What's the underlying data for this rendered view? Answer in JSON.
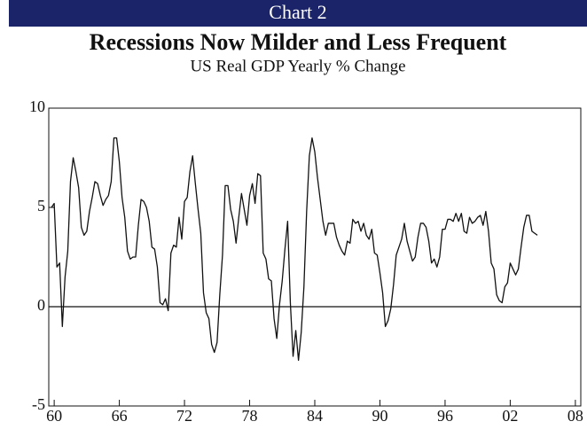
{
  "chart_data": {
    "type": "line",
    "header": "Chart 2",
    "title": "Recessions Now Milder and Less Frequent",
    "subtitle": "US Real GDP Yearly % Change",
    "color": "#111111",
    "x": [
      1959.75,
      1960,
      1960.25,
      1960.5,
      1960.75,
      1961,
      1961.25,
      1961.5,
      1961.75,
      1962,
      1962.25,
      1962.5,
      1962.75,
      1963,
      1963.25,
      1963.5,
      1963.75,
      1964,
      1964.25,
      1964.5,
      1964.75,
      1965,
      1965.25,
      1965.5,
      1965.75,
      1966,
      1966.25,
      1966.5,
      1966.75,
      1967,
      1967.25,
      1967.5,
      1967.75,
      1968,
      1968.25,
      1968.5,
      1968.75,
      1969,
      1969.25,
      1969.5,
      1969.75,
      1970,
      1970.25,
      1970.5,
      1970.75,
      1971,
      1971.25,
      1971.5,
      1971.75,
      1972,
      1972.25,
      1972.5,
      1972.75,
      1973,
      1973.25,
      1973.5,
      1973.75,
      1974,
      1974.25,
      1974.5,
      1974.75,
      1975,
      1975.25,
      1975.5,
      1975.75,
      1976,
      1976.25,
      1976.5,
      1976.75,
      1977,
      1977.25,
      1977.5,
      1977.75,
      1978,
      1978.25,
      1978.5,
      1978.75,
      1979,
      1979.25,
      1979.5,
      1979.75,
      1980,
      1980.25,
      1980.5,
      1980.75,
      1981,
      1981.25,
      1981.5,
      1981.75,
      1982,
      1982.25,
      1982.5,
      1982.75,
      1983,
      1983.25,
      1983.5,
      1983.75,
      1984,
      1984.25,
      1984.5,
      1984.75,
      1985,
      1985.25,
      1985.5,
      1985.75,
      1986,
      1986.25,
      1986.5,
      1986.75,
      1987,
      1987.25,
      1987.5,
      1987.75,
      1988,
      1988.25,
      1988.5,
      1988.75,
      1989,
      1989.25,
      1989.5,
      1989.75,
      1990,
      1990.25,
      1990.5,
      1990.75,
      1991,
      1991.25,
      1991.5,
      1991.75,
      1992,
      1992.25,
      1992.5,
      1992.75,
      1993,
      1993.25,
      1993.5,
      1993.75,
      1994,
      1994.25,
      1994.5,
      1994.75,
      1995,
      1995.25,
      1995.5,
      1995.75,
      1996,
      1996.25,
      1996.5,
      1996.75,
      1997,
      1997.25,
      1997.5,
      1997.75,
      1998,
      1998.25,
      1998.5,
      1998.75,
      1999,
      1999.25,
      1999.5,
      1999.75,
      2000,
      2000.25,
      2000.5,
      2000.75,
      2001,
      2001.25,
      2001.5,
      2001.75,
      2002,
      2002.25,
      2002.5,
      2002.75,
      2003,
      2003.25,
      2003.5,
      2003.75,
      2004,
      2004.25,
      2004.5
    ],
    "values": [
      5.0,
      5.2,
      2.0,
      2.2,
      -1.0,
      1.5,
      2.8,
      6.3,
      7.5,
      6.8,
      6.0,
      4.0,
      3.6,
      3.8,
      4.8,
      5.5,
      6.3,
      6.2,
      5.6,
      5.1,
      5.4,
      5.6,
      6.3,
      8.5,
      8.5,
      7.3,
      5.5,
      4.5,
      2.8,
      2.4,
      2.5,
      2.5,
      4.1,
      5.4,
      5.3,
      5.0,
      4.3,
      3.0,
      2.9,
      2.0,
      0.2,
      0.1,
      0.4,
      -0.2,
      2.7,
      3.1,
      3.0,
      4.5,
      3.4,
      5.3,
      5.5,
      6.8,
      7.6,
      6.2,
      4.9,
      3.7,
      0.7,
      -0.3,
      -0.6,
      -1.9,
      -2.3,
      -1.8,
      0.6,
      2.6,
      6.1,
      6.1,
      4.9,
      4.3,
      3.2,
      4.5,
      5.7,
      4.9,
      4.1,
      5.6,
      6.2,
      5.2,
      6.7,
      6.6,
      2.7,
      2.4,
      1.4,
      1.3,
      -0.6,
      -1.6,
      0.1,
      1.3,
      2.9,
      4.3,
      0.2,
      -2.5,
      -1.2,
      -2.7,
      -1.3,
      1.0,
      4.8,
      7.6,
      8.5,
      7.8,
      6.5,
      5.4,
      4.3,
      3.6,
      4.2,
      4.2,
      4.2,
      3.5,
      3.1,
      2.8,
      2.6,
      3.3,
      3.2,
      4.4,
      4.2,
      4.3,
      3.8,
      4.2,
      3.6,
      3.4,
      3.9,
      2.7,
      2.6,
      1.7,
      0.7,
      -1.0,
      -0.7,
      -0.1,
      1.1,
      2.6,
      3.0,
      3.4,
      4.2,
      3.3,
      2.8,
      2.3,
      2.5,
      3.5,
      4.2,
      4.2,
      4.0,
      3.3,
      2.2,
      2.4,
      2.0,
      2.5,
      3.9,
      3.9,
      4.4,
      4.4,
      4.3,
      4.7,
      4.3,
      4.7,
      3.8,
      3.7,
      4.5,
      4.2,
      4.3,
      4.5,
      4.6,
      4.1,
      4.8,
      3.8,
      2.2,
      1.9,
      0.6,
      0.3,
      0.2,
      1.0,
      1.2,
      2.2,
      1.9,
      1.6,
      1.9,
      3.0,
      4.0,
      4.6,
      4.6,
      3.8,
      3.7,
      3.6
    ],
    "xlim": [
      1959.5,
      2008.5
    ],
    "xticks": [
      {
        "value": 1960,
        "label": "60"
      },
      {
        "value": 1966,
        "label": "66"
      },
      {
        "value": 1972,
        "label": "72"
      },
      {
        "value": 1978,
        "label": "78"
      },
      {
        "value": 1984,
        "label": "84"
      },
      {
        "value": 1990,
        "label": "90"
      },
      {
        "value": 1996,
        "label": "96"
      },
      {
        "value": 2002,
        "label": "02"
      },
      {
        "value": 2008,
        "label": "08"
      }
    ],
    "ylim": [
      -5,
      10
    ],
    "yticks": [
      -5,
      0,
      5,
      10
    ]
  }
}
